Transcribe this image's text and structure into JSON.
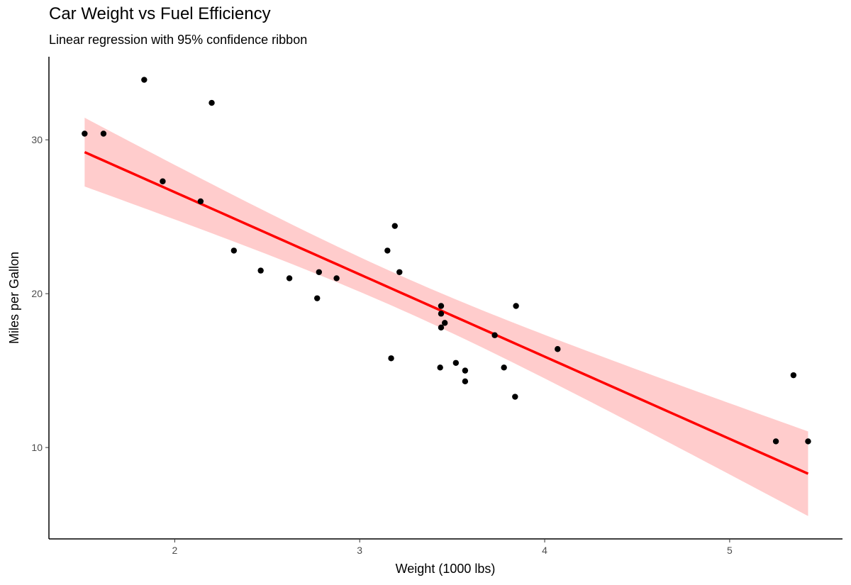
{
  "chart_data": {
    "type": "scatter",
    "title": "Car Weight vs Fuel Efficiency",
    "subtitle": "Linear regression with 95% confidence ribbon",
    "xlabel": "Weight (1000 lbs)",
    "ylabel": "Miles per Gallon",
    "xlim": [
      1.32,
      5.61
    ],
    "ylim": [
      4.06,
      35.4
    ],
    "xticks": [
      2,
      3,
      4,
      5
    ],
    "yticks": [
      10,
      20,
      30
    ],
    "grid": false,
    "colors": {
      "points": "#000000",
      "line": "#ff0000",
      "ribbon": "#ffcccc"
    },
    "fit": {
      "method": "linear regression",
      "confidence": 0.95
    },
    "points": [
      [
        2.62,
        21.0
      ],
      [
        2.875,
        21.0
      ],
      [
        2.32,
        22.8
      ],
      [
        3.215,
        21.4
      ],
      [
        3.44,
        18.7
      ],
      [
        3.46,
        18.1
      ],
      [
        3.57,
        14.3
      ],
      [
        3.19,
        24.4
      ],
      [
        3.15,
        22.8
      ],
      [
        3.44,
        19.2
      ],
      [
        3.44,
        17.8
      ],
      [
        4.07,
        16.4
      ],
      [
        3.73,
        17.3
      ],
      [
        3.78,
        15.2
      ],
      [
        5.25,
        10.4
      ],
      [
        5.424,
        10.4
      ],
      [
        5.345,
        14.7
      ],
      [
        2.2,
        32.4
      ],
      [
        1.615,
        30.4
      ],
      [
        1.835,
        33.9
      ],
      [
        2.465,
        21.5
      ],
      [
        3.52,
        15.5
      ],
      [
        3.435,
        15.2
      ],
      [
        3.84,
        13.3
      ],
      [
        3.845,
        19.2
      ],
      [
        1.935,
        27.3
      ],
      [
        2.14,
        26.0
      ],
      [
        1.513,
        30.4
      ],
      [
        3.17,
        15.8
      ],
      [
        2.77,
        19.7
      ],
      [
        3.57,
        15.0
      ],
      [
        2.78,
        21.4
      ]
    ]
  }
}
